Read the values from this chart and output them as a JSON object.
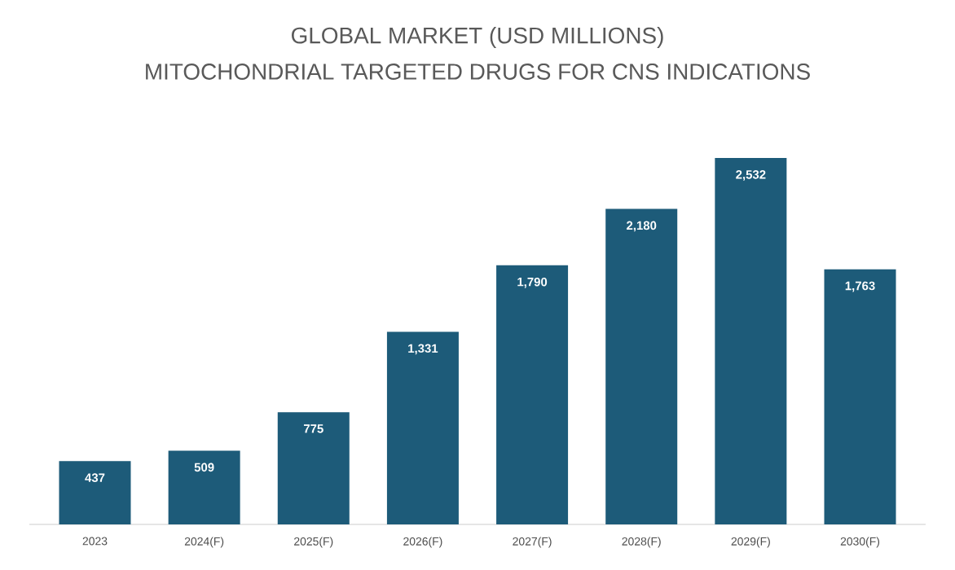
{
  "chart_data": {
    "type": "bar",
    "title": "GLOBAL MARKET (USD MILLIONS)",
    "subtitle": "MITOCHONDRIAL TARGETED DRUGS FOR CNS INDICATIONS",
    "categories": [
      "2023",
      "2024(F)",
      "2025(F)",
      "2026(F)",
      "2027(F)",
      "2028(F)",
      "2029(F)",
      "2030(F)"
    ],
    "values": [
      437,
      509,
      775,
      1331,
      1790,
      2180,
      2532,
      1763
    ],
    "value_labels": [
      "437",
      "509",
      "775",
      "1,331",
      "1,790",
      "2,180",
      "2,532",
      "1,763"
    ],
    "color": "#1d5b79",
    "tick_labels": "x"
  }
}
